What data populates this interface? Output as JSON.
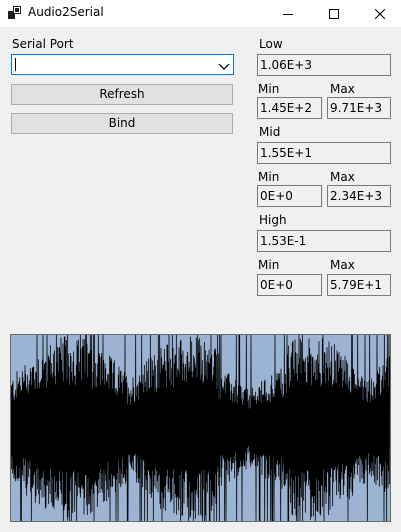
{
  "window": {
    "title": "Audio2Serial"
  },
  "left": {
    "serial_port_label": "Serial Port",
    "serial_port_value": "",
    "refresh_label": "Refresh",
    "bind_label": "Bind"
  },
  "bands": {
    "low": {
      "label": "Low",
      "value": "1.06E+3",
      "min_label": "Min",
      "min": "1.45E+2",
      "max_label": "Max",
      "max": "9.71E+3"
    },
    "mid": {
      "label": "Mid",
      "value": "1.55E+1",
      "min_label": "Min",
      "min": "0E+0",
      "max_label": "Max",
      "max": "2.34E+3"
    },
    "high": {
      "label": "High",
      "value": "1.53E-1",
      "min_label": "Min",
      "min": "0E+0",
      "max_label": "Max",
      "max": "5.79E+1"
    }
  },
  "waveform": {
    "background_color": "#9cb4d3",
    "wave_color": "#000000"
  },
  "icons": {
    "app": "window-app-icon",
    "minimize": "minimize-icon",
    "maximize": "maximize-icon",
    "close": "close-icon",
    "dropdown": "chevron-down-icon"
  }
}
